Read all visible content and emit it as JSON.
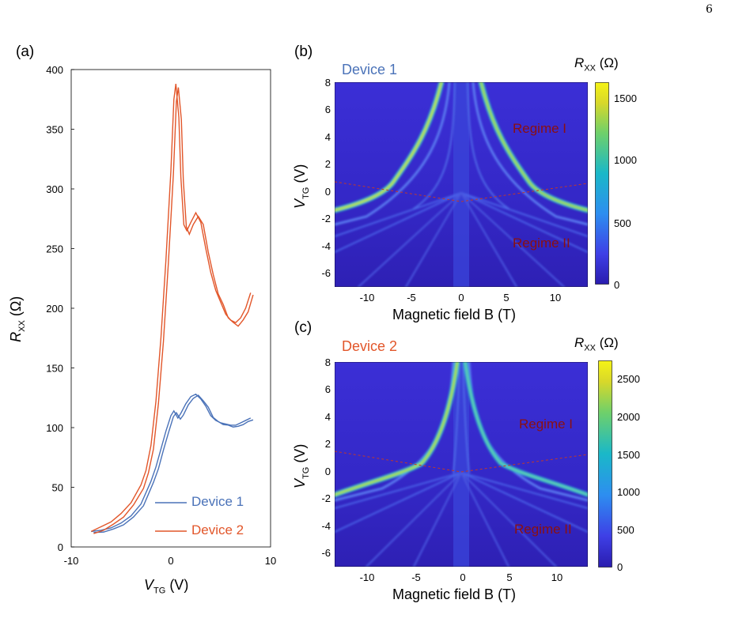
{
  "page_number": "6",
  "panels": {
    "a": {
      "label": "(a)"
    },
    "b": {
      "label": "(b)",
      "device_title": "Device 1",
      "regime1": "Regime I",
      "regime2": "Regime II",
      "colorbar_title": "R_XX (Ω)",
      "colorbar_ticks": [
        "1500",
        "1000",
        "500",
        "0"
      ],
      "xticks": [
        "-10",
        "-5",
        "0",
        "5",
        "10"
      ],
      "yticks": [
        "8",
        "6",
        "4",
        "2",
        "0",
        "-2",
        "-4",
        "-6"
      ],
      "xlabel": "Magnetic field B (T)"
    },
    "c": {
      "label": "(c)",
      "device_title": "Device 2",
      "regime1": "Regime I",
      "regime2": "Regime II",
      "colorbar_title": "R_XX (Ω)",
      "colorbar_ticks": [
        "2500",
        "2000",
        "1500",
        "1000",
        "500",
        "0"
      ],
      "xticks": [
        "-10",
        "-5",
        "0",
        "5",
        "10"
      ],
      "yticks": [
        "8",
        "6",
        "4",
        "2",
        "0",
        "-2",
        "-4",
        "-6"
      ],
      "xlabel": "Magnetic field B (T)"
    }
  },
  "colors": {
    "device1": "#4a72b8",
    "device2": "#e2562a",
    "regime_line": "#c0392b",
    "heatmap_bg": "#3a2fd0"
  },
  "chart_data": [
    {
      "type": "line",
      "panel": "a",
      "xlabel_main": "V",
      "xlabel_sub": "TG",
      "xlabel_unit": "(V)",
      "ylabel_main": "R",
      "ylabel_sub": "XX",
      "ylabel_unit": "(Ω)",
      "xlim": [
        -10,
        10
      ],
      "ylim": [
        0,
        400
      ],
      "xticks": [
        -10,
        0,
        10
      ],
      "yticks": [
        0,
        50,
        100,
        150,
        200,
        250,
        300,
        350,
        400
      ],
      "legend_position": "bottom-right",
      "series": [
        {
          "name": "Device 1",
          "x": [
            -8,
            -7,
            -6,
            -5,
            -4,
            -3,
            -2,
            -1.5,
            -1,
            -0.5,
            0,
            0.3,
            0.7,
            1,
            1.5,
            2,
            2.5,
            3,
            3.5,
            4,
            4.5,
            5,
            5.5,
            6,
            6.5,
            7,
            7.5,
            8
          ],
          "y": [
            13,
            14,
            16,
            20,
            26,
            36,
            55,
            67,
            82,
            97,
            110,
            114,
            108,
            112,
            120,
            126,
            128,
            124,
            118,
            110,
            106,
            104,
            103,
            102,
            102,
            104,
            106,
            108
          ]
        },
        {
          "name": "Device 2",
          "x": [
            -8,
            -7,
            -6,
            -5,
            -4,
            -3,
            -2.5,
            -2,
            -1.5,
            -1,
            -0.5,
            0,
            0.3,
            0.5,
            0.8,
            1,
            1.3,
            1.6,
            2,
            2.5,
            3,
            3.5,
            4,
            4.5,
            5,
            5.5,
            6,
            6.5,
            7,
            7.5,
            8
          ],
          "y": [
            13,
            17,
            21,
            28,
            37,
            52,
            64,
            85,
            122,
            175,
            240,
            315,
            375,
            388,
            360,
            310,
            270,
            265,
            272,
            280,
            272,
            250,
            230,
            215,
            205,
            195,
            190,
            188,
            192,
            200,
            213
          ]
        }
      ]
    },
    {
      "type": "heatmap",
      "panel": "b",
      "xlim": [
        -14,
        14
      ],
      "ylim": [
        -7,
        8
      ],
      "colorbar_range": [
        0,
        1600
      ]
    },
    {
      "type": "heatmap",
      "panel": "c",
      "xlim": [
        -14,
        14
      ],
      "ylim": [
        -7,
        8
      ],
      "colorbar_range": [
        0,
        2750
      ]
    }
  ]
}
